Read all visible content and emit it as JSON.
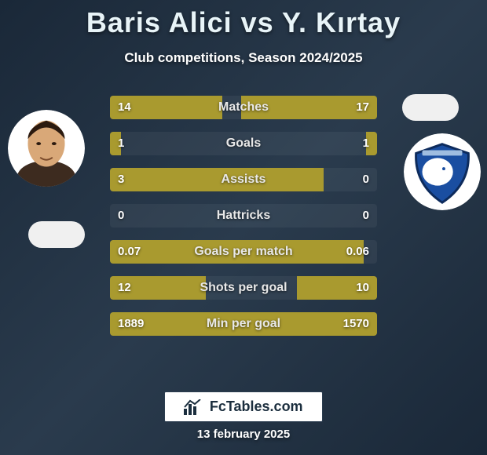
{
  "title": "Baris Alici vs Y. Kırtay",
  "subtitle": "Club competitions, Season 2024/2025",
  "date": "13 february 2025",
  "brand": "FcTables.com",
  "colors": {
    "bar_left": "#a99a2f",
    "bar_right": "#a99a2f",
    "bar_bg": "rgba(255,255,255,0.05)"
  },
  "stat_row_width": 340,
  "stats": [
    {
      "label": "Matches",
      "left_val": "14",
      "right_val": "17",
      "left_pct": 42,
      "right_pct": 51
    },
    {
      "label": "Goals",
      "left_val": "1",
      "right_val": "1",
      "left_pct": 4,
      "right_pct": 4
    },
    {
      "label": "Assists",
      "left_val": "3",
      "right_val": "0",
      "left_pct": 80,
      "right_pct": 0
    },
    {
      "label": "Hattricks",
      "left_val": "0",
      "right_val": "0",
      "left_pct": 0,
      "right_pct": 0
    },
    {
      "label": "Goals per match",
      "left_val": "0.07",
      "right_val": "0.06",
      "left_pct": 95,
      "right_pct": 0
    },
    {
      "label": "Shots per goal",
      "left_val": "12",
      "right_val": "10",
      "left_pct": 36,
      "right_pct": 30
    },
    {
      "label": "Min per goal",
      "left_val": "1889",
      "right_val": "1570",
      "left_pct": 50,
      "right_pct": 50
    }
  ]
}
